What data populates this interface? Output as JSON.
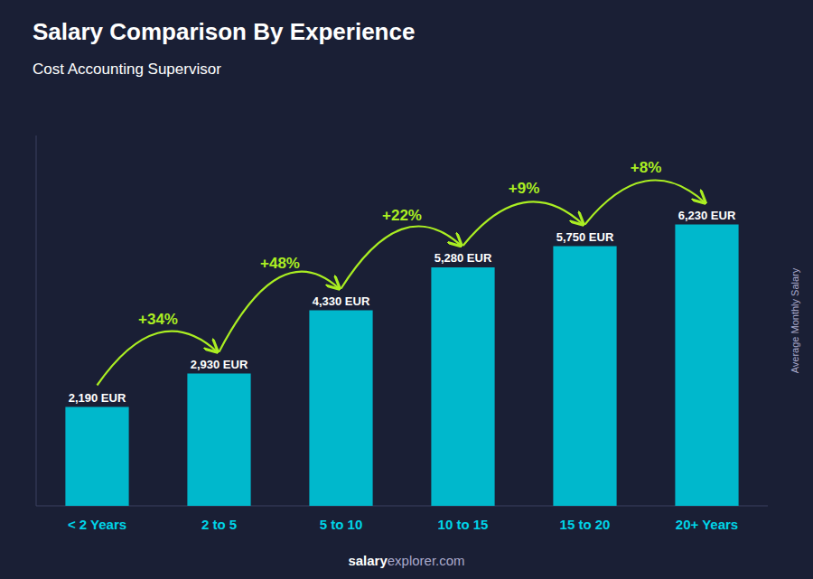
{
  "chart_data": {
    "type": "bar",
    "title": "Salary Comparison By Experience",
    "subtitle": "Cost Accounting Supervisor",
    "y_label": "Average Monthly Salary",
    "categories": [
      "< 2 Years",
      "2 to 5",
      "5 to 10",
      "10 to 15",
      "15 to 20",
      "20+ Years"
    ],
    "values": [
      2190,
      2930,
      4330,
      5280,
      5750,
      6230
    ],
    "value_labels": [
      "2,190 EUR",
      "2,930 EUR",
      "4,330 EUR",
      "5,280 EUR",
      "5,750 EUR",
      "6,230 EUR"
    ],
    "data_labels": true,
    "annotations": [
      "+34%",
      "+48%",
      "+22%",
      "+9%",
      "+8%"
    ],
    "footer": [
      "salary",
      "explorer.com"
    ],
    "color": "#00b8cc",
    "ylim": [
      0,
      8200
    ],
    "tick_labels": "x",
    "grid": false
  }
}
